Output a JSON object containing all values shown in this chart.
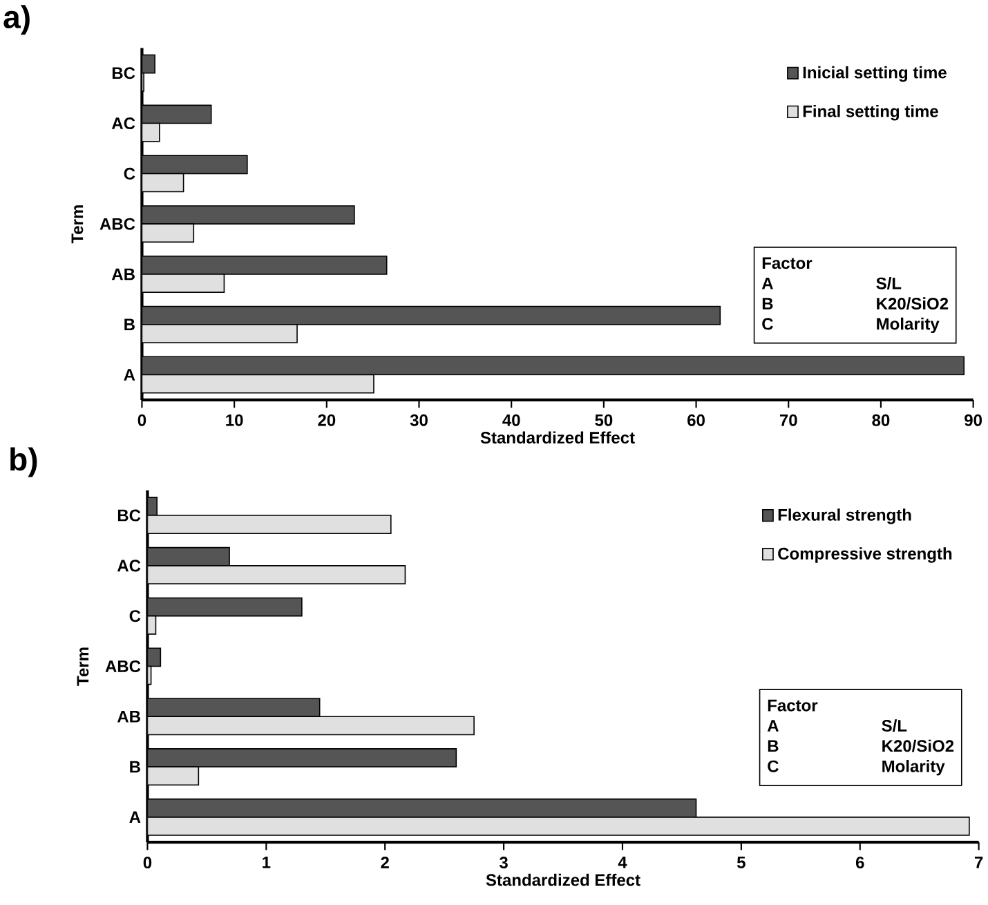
{
  "chart_data": [
    {
      "type": "bar",
      "orientation": "horizontal",
      "title": "a)",
      "xlabel": "Standardized Effect",
      "ylabel": "Term",
      "categories": [
        "BC",
        "AC",
        "C",
        "ABC",
        "AB",
        "B",
        "A"
      ],
      "series": [
        {
          "name": "Inicial setting time",
          "color": "#555555",
          "values": [
            1.4,
            7.5,
            11.4,
            23,
            26.5,
            62.6,
            89
          ]
        },
        {
          "name": "Final setting time",
          "color": "#e0e0e0",
          "values": [
            0.2,
            1.9,
            4.5,
            5.6,
            8.9,
            16.8,
            25.1
          ]
        }
      ],
      "xlim": [
        0,
        90
      ],
      "xticks": [
        0,
        10,
        20,
        30,
        40,
        50,
        60,
        70,
        80,
        90
      ],
      "legend": "top right",
      "annotations": [
        "Factor",
        "A",
        "S/L",
        "B",
        "K20/SiO2",
        "C",
        "Molarity"
      ]
    },
    {
      "type": "bar",
      "orientation": "horizontal",
      "title": "b)",
      "xlabel": "Standardized Effect",
      "ylabel": "Term",
      "categories": [
        "BC",
        "AC",
        "C",
        "ABC",
        "AB",
        "B",
        "A"
      ],
      "series": [
        {
          "name": "Flexural strength",
          "color": "#555555",
          "values": [
            0.08,
            0.69,
            1.3,
            0.11,
            1.45,
            2.6,
            4.62
          ]
        },
        {
          "name": "Compressive strength",
          "color": "#e0e0e0",
          "values": [
            2.05,
            2.17,
            0.07,
            0.03,
            2.75,
            0.43,
            6.92
          ]
        }
      ],
      "xlim": [
        0,
        7
      ],
      "xticks": [
        0,
        1,
        2,
        3,
        4,
        5,
        6,
        7
      ],
      "legend": "top right",
      "annotations": [
        "Factor",
        "A",
        "S/L",
        "B",
        "K20/SiO2",
        "C",
        "Molarity"
      ]
    }
  ]
}
